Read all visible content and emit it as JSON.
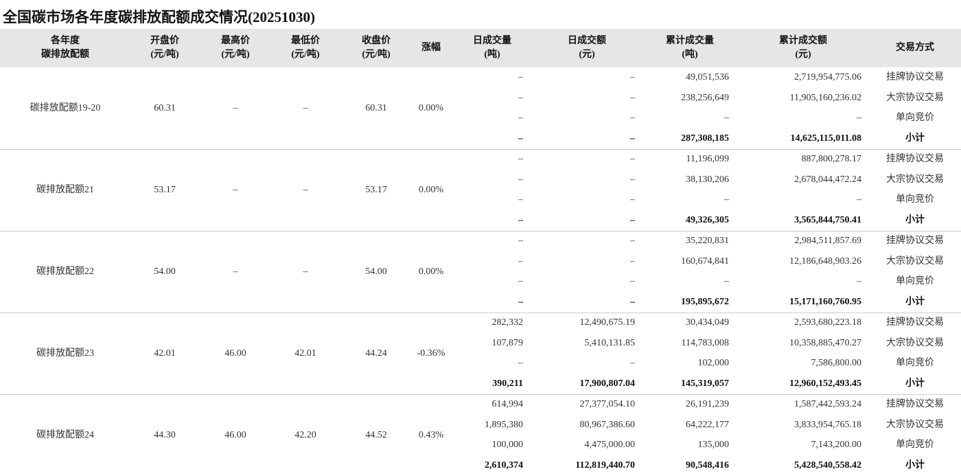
{
  "header": {
    "title": "全国碳市场各年度碳排放配额成交情况(20251030)"
  },
  "table": {
    "columns": [
      [
        "各年度",
        "碳排放配额"
      ],
      [
        "开盘价",
        "(元/吨)"
      ],
      [
        "最高价",
        "(元/吨)"
      ],
      [
        "最低价",
        "(元/吨)"
      ],
      [
        "收盘价",
        "(元/吨)"
      ],
      [
        "涨幅"
      ],
      [
        "日成交量",
        "(吨)"
      ],
      [
        "日成交额",
        "(元)"
      ],
      [
        "累计成交量",
        "(吨)"
      ],
      [
        "累计成交额",
        "(元)"
      ],
      [
        "交易方式"
      ]
    ],
    "groups": [
      {
        "cells": [
          "碳排放配额19-20",
          "60.31",
          "–",
          "–",
          "60.31",
          "0.00%"
        ],
        "rows": [
          [
            "–",
            "–",
            "49,051,536",
            "2,719,954,775.06",
            "挂牌协议交易"
          ],
          [
            "–",
            "–",
            "238,256,649",
            "11,905,160,236.02",
            "大宗协议交易"
          ],
          [
            "–",
            "–",
            "–",
            "–",
            "单向竞价"
          ],
          [
            "–",
            "–",
            "287,308,185",
            "14,625,115,011.08",
            "小计"
          ]
        ]
      },
      {
        "cells": [
          "碳排放配额21",
          "53.17",
          "–",
          "–",
          "53.17",
          "0.00%"
        ],
        "rows": [
          [
            "–",
            "–",
            "11,196,099",
            "887,800,278.17",
            "挂牌协议交易"
          ],
          [
            "–",
            "–",
            "38,130,206",
            "2,678,044,472.24",
            "大宗协议交易"
          ],
          [
            "–",
            "–",
            "–",
            "–",
            "单向竞价"
          ],
          [
            "–",
            "–",
            "49,326,305",
            "3,565,844,750.41",
            "小计"
          ]
        ]
      },
      {
        "cells": [
          "碳排放配额22",
          "54.00",
          "–",
          "–",
          "54.00",
          "0.00%"
        ],
        "rows": [
          [
            "–",
            "–",
            "35,220,831",
            "2,984,511,857.69",
            "挂牌协议交易"
          ],
          [
            "–",
            "–",
            "160,674,841",
            "12,186,648,903.26",
            "大宗协议交易"
          ],
          [
            "–",
            "–",
            "–",
            "–",
            "单向竞价"
          ],
          [
            "–",
            "–",
            "195,895,672",
            "15,171,160,760.95",
            "小计"
          ]
        ]
      },
      {
        "cells": [
          "碳排放配额23",
          "42.01",
          "46.00",
          "42.01",
          "44.24",
          "-0.36%"
        ],
        "rows": [
          [
            "282,332",
            "12,490,675.19",
            "30,434,049",
            "2,593,680,223.18",
            "挂牌协议交易"
          ],
          [
            "107,879",
            "5,410,131.85",
            "114,783,008",
            "10,358,885,470.27",
            "大宗协议交易"
          ],
          [
            "–",
            "–",
            "102,000",
            "7,586,800.00",
            "单向竞价"
          ],
          [
            "390,211",
            "17,900,807.04",
            "145,319,057",
            "12,960,152,493.45",
            "小计"
          ]
        ]
      },
      {
        "cells": [
          "碳排放配额24",
          "44.30",
          "46.00",
          "42.20",
          "44.52",
          "0.43%"
        ],
        "rows": [
          [
            "614,994",
            "27,377,054.10",
            "26,191,239",
            "1,587,442,593.24",
            "挂牌协议交易"
          ],
          [
            "1,895,380",
            "80,967,386.60",
            "64,222,177",
            "3,833,954,765.18",
            "大宗协议交易"
          ],
          [
            "100,000",
            "4,475,000.00",
            "135,000",
            "7,143,200.00",
            "单向竞价"
          ],
          [
            "2,610,374",
            "112,819,440.70",
            "90,548,416",
            "5,428,540,558.42",
            "小计"
          ]
        ]
      }
    ]
  }
}
